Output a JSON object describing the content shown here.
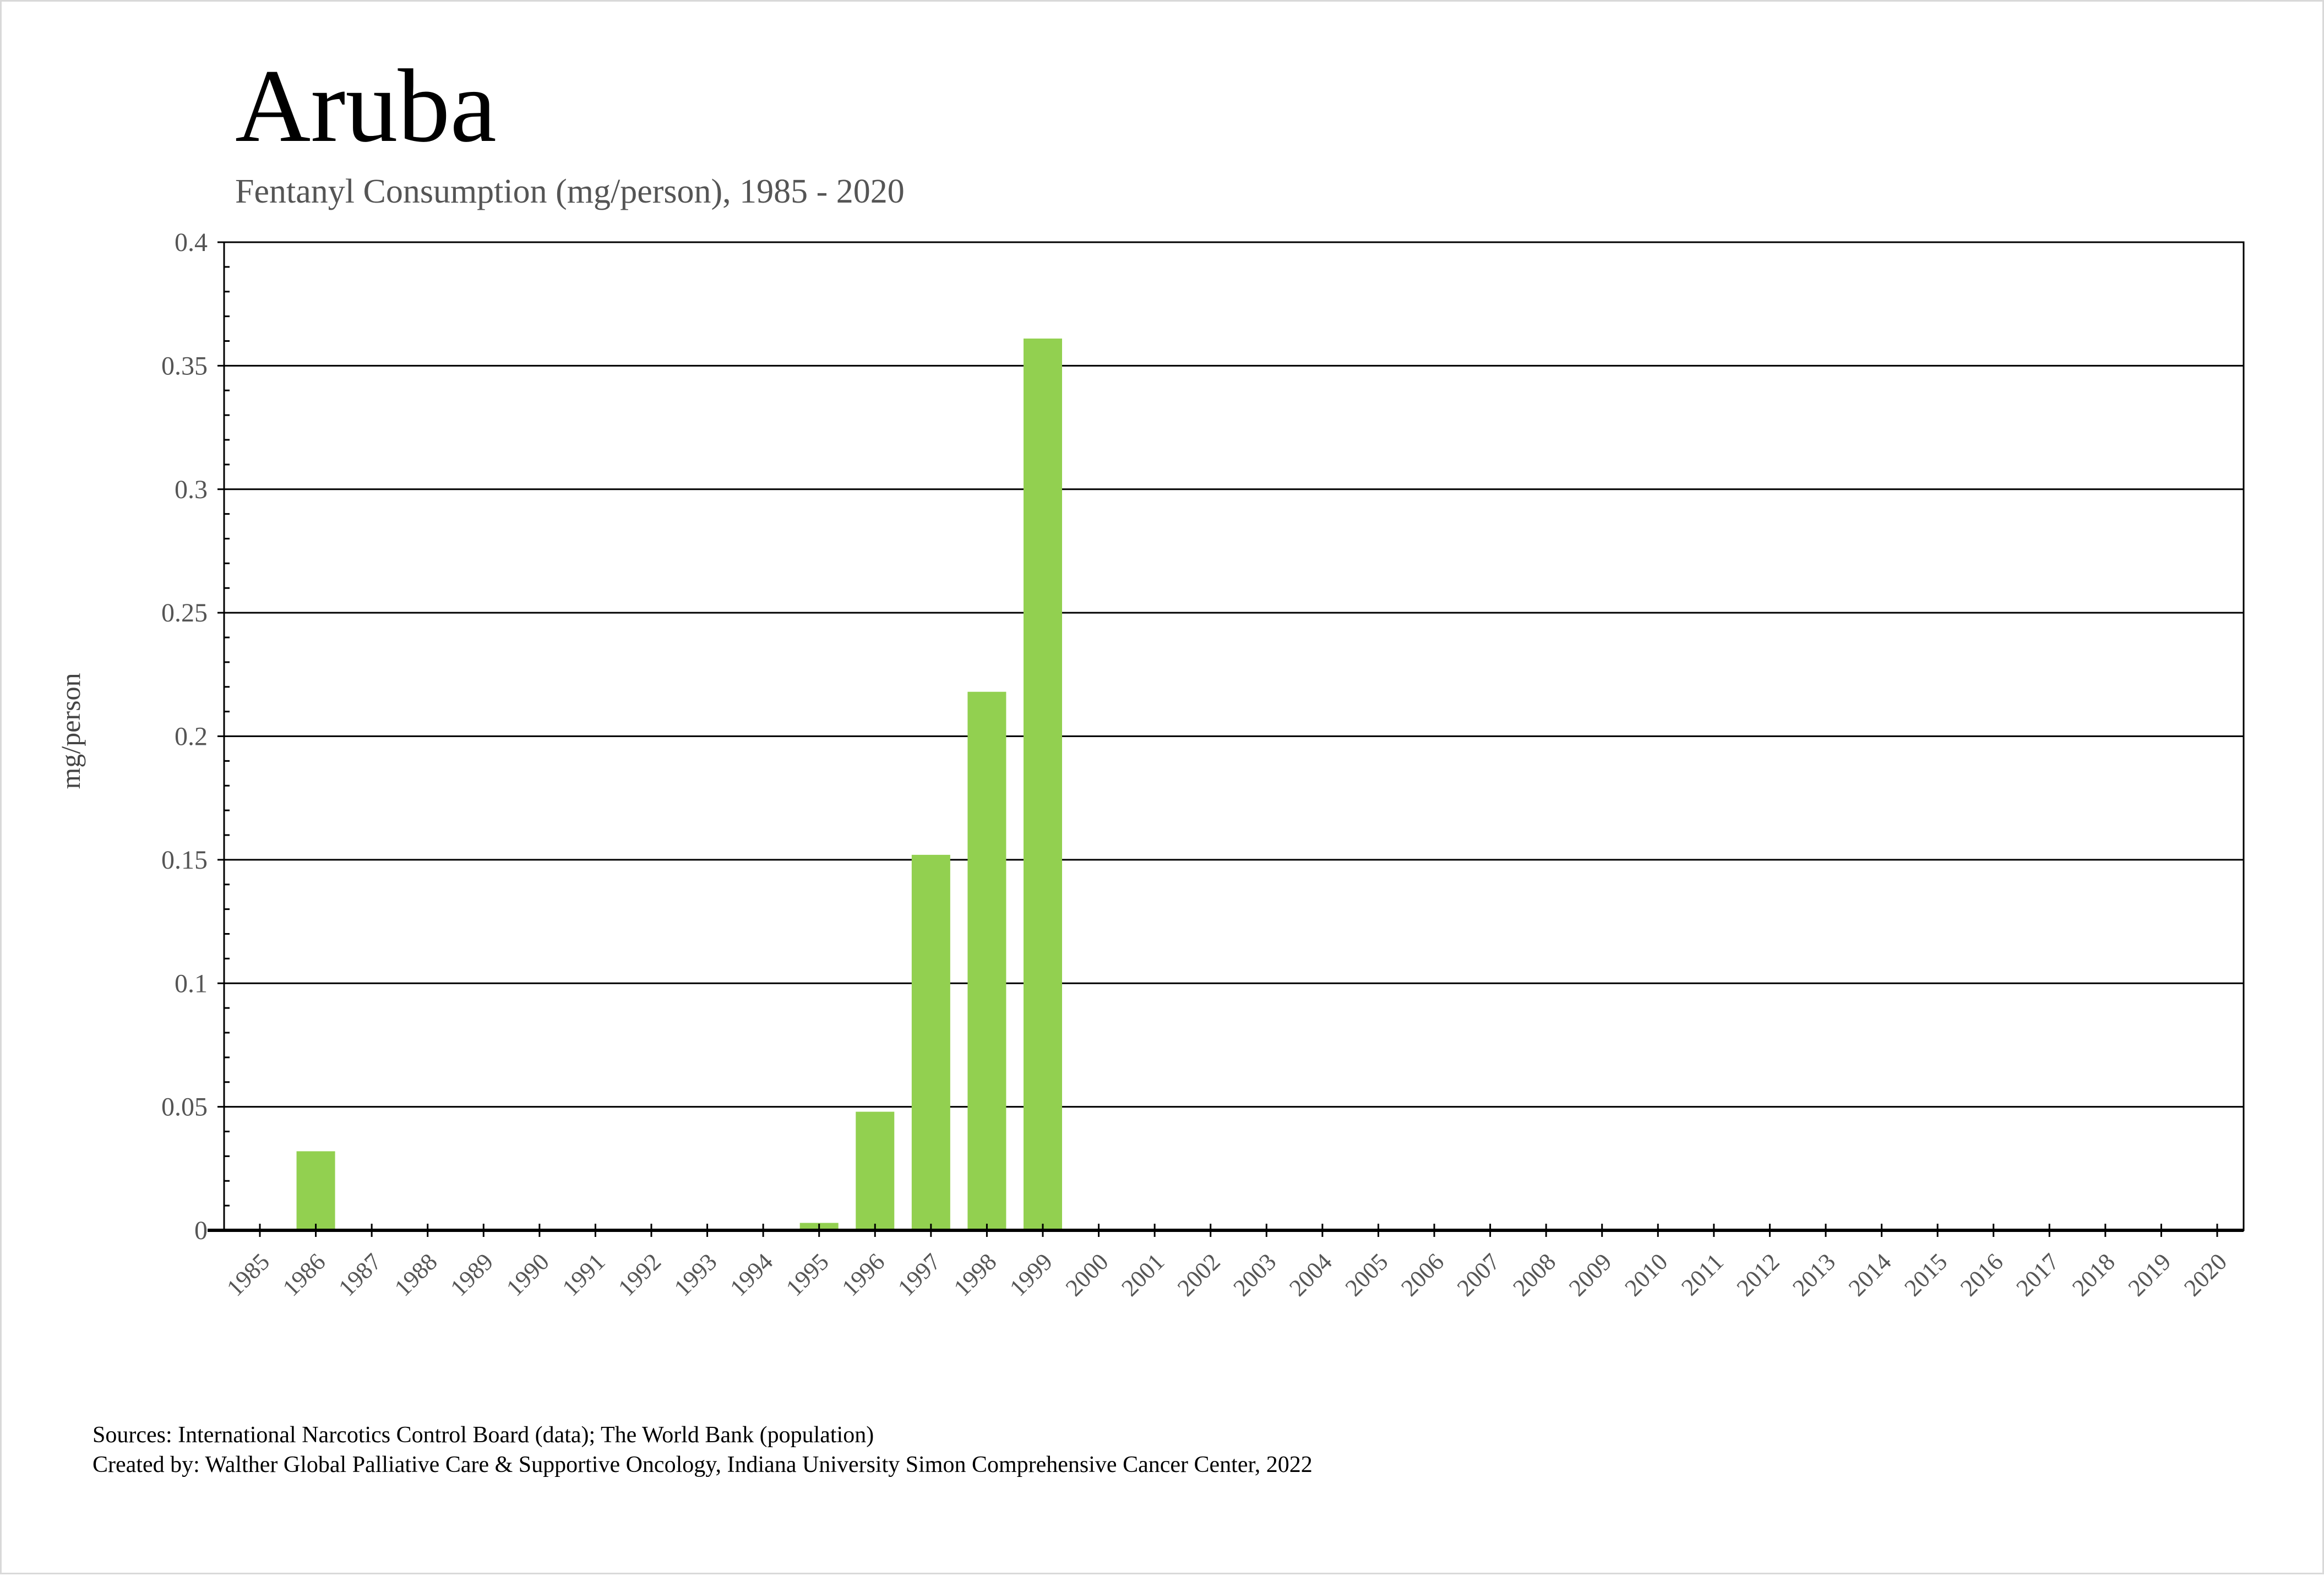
{
  "chart_data": {
    "type": "bar",
    "title": "Aruba",
    "subtitle": "Fentanyl Consumption (mg/person), 1985 - 2020",
    "xlabel": "",
    "ylabel": "mg/person",
    "ylim": [
      0,
      0.4
    ],
    "yticks": [
      "0",
      "0.05",
      "0.1",
      "0.15",
      "0.2",
      "0.25",
      "0.3",
      "0.35",
      "0.4"
    ],
    "grid": true,
    "bar_color": "#92d050",
    "categories": [
      "1985",
      "1986",
      "1987",
      "1988",
      "1989",
      "1990",
      "1991",
      "1992",
      "1993",
      "1994",
      "1995",
      "1996",
      "1997",
      "1998",
      "1999",
      "2000",
      "2001",
      "2002",
      "2003",
      "2004",
      "2005",
      "2006",
      "2007",
      "2008",
      "2009",
      "2010",
      "2011",
      "2012",
      "2013",
      "2014",
      "2015",
      "2016",
      "2017",
      "2018",
      "2019",
      "2020"
    ],
    "values": [
      0,
      0.032,
      0,
      0,
      0,
      0,
      0,
      0,
      0,
      0,
      0.003,
      0.048,
      0.152,
      0.218,
      0.361,
      0,
      0,
      0,
      0,
      0,
      0,
      0,
      0,
      0,
      0,
      0,
      0,
      0,
      0,
      0,
      0,
      0,
      0,
      0,
      0,
      0
    ]
  },
  "footer": {
    "sources": "Sources: International Narcotics Control Board (data); The World Bank (population)",
    "created_by": "Created by: Walther Global Palliative Care & Supportive Oncology, Indiana University Simon Comprehensive Cancer Center, 2022"
  }
}
